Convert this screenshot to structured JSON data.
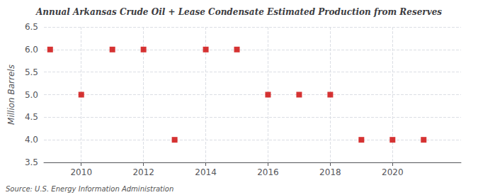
{
  "chart_data": {
    "type": "scatter",
    "title": "Annual Arkansas Crude Oil + Lease Condensate Estimated Production from Reserves",
    "ylabel": "Million Barrels",
    "annotations": [
      "Source: U.S. Energy Information Administration"
    ],
    "x": [
      2009,
      2010,
      2011,
      2012,
      2013,
      2014,
      2015,
      2016,
      2017,
      2018,
      2019,
      2020,
      2021
    ],
    "values": [
      6.0,
      5.0,
      6.0,
      6.0,
      4.0,
      6.0,
      6.0,
      5.0,
      5.0,
      5.0,
      4.0,
      4.0,
      4.0
    ],
    "color": "#cc0000",
    "marker": "square",
    "xlim": [
      2008.8,
      2022.2
    ],
    "xticks": [
      2010,
      2012,
      2014,
      2016,
      2018,
      2020
    ],
    "ylim": [
      3.5,
      6.5
    ],
    "yticks": [
      3.5,
      {
        "value": 4.0,
        "label": "4.0"
      },
      4.5,
      {
        "value": 5.0,
        "label": "5.0"
      },
      5.5,
      {
        "value": 6.0,
        "label": "6.0"
      },
      6.5
    ],
    "grid": true
  }
}
